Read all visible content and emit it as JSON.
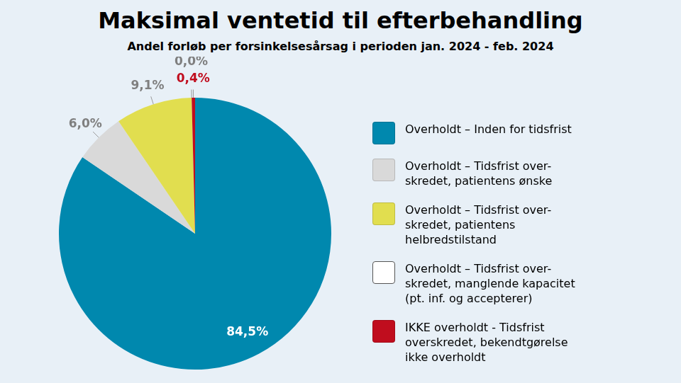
{
  "chart_data": {
    "type": "pie",
    "title": "Maksimal ventetid til efterbehandling",
    "subtitle": "Andel forløb per forsinkelsesårsag i perioden jan. 2024 - feb. 2024",
    "categories": [
      "Overholdt – Inden for tidsfrist",
      "Overholdt – Tidsfrist over-\nskredet, patientens ønske",
      "Overholdt – Tidsfrist over-\nskredet, patientens\nhelbredstilstand",
      "Overholdt – Tidsfrist over-\nskredet, manglende kapacitet\n(pt. inf. og accepterer)",
      "IKKE overholdt - Tidsfrist\noverskredet, bekendtgørelse\nikke overholdt"
    ],
    "values": [
      84.5,
      6.0,
      9.1,
      0.0,
      0.4
    ],
    "value_labels": [
      "84,5%",
      "6,0%",
      "9,1%",
      "0,0%",
      "0,4%"
    ],
    "colors": [
      "#0088ae",
      "#d9d9d9",
      "#e1de4f",
      "#ffffff",
      "#c00d1e"
    ],
    "data_labels": true,
    "legend": "right"
  }
}
